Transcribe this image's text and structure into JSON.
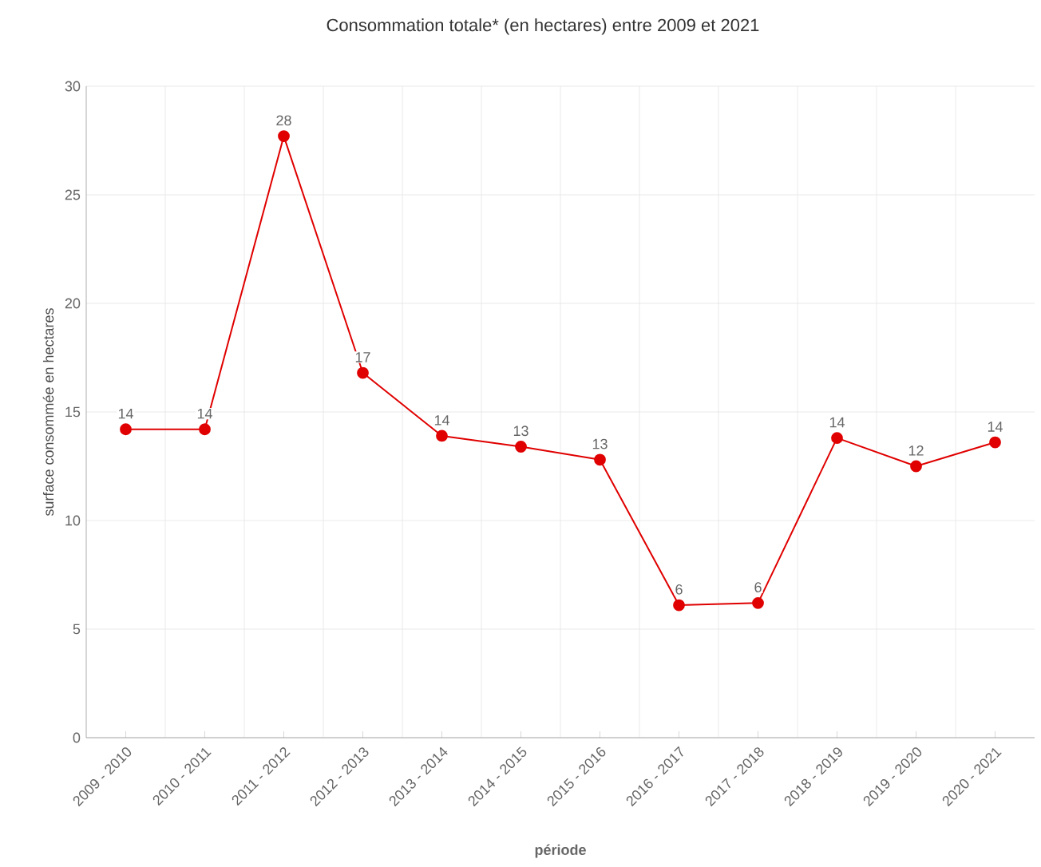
{
  "chart_data": {
    "type": "line",
    "title": "Consommation totale* (en hectares) entre 2009 et 2021",
    "xlabel": "période",
    "ylabel": "surface consommée en hectares",
    "categories": [
      "2009 - 2010",
      "2010 - 2011",
      "2011 - 2012",
      "2012 - 2013",
      "2013 - 2014",
      "2014 - 2015",
      "2015 - 2016",
      "2016 - 2017",
      "2017 - 2018",
      "2018 - 2019",
      "2019 - 2020",
      "2020 - 2021"
    ],
    "values": [
      14.2,
      14.2,
      27.7,
      16.8,
      13.9,
      13.4,
      12.8,
      6.1,
      6.2,
      13.8,
      12.5,
      13.6
    ],
    "value_labels": [
      "14",
      "14",
      "28",
      "17",
      "14",
      "13",
      "13",
      "6",
      "6",
      "14",
      "12",
      "14"
    ],
    "color": "#e00000",
    "marker": "circle",
    "line_style": "solid",
    "grid": true,
    "ylim": [
      0,
      30
    ],
    "yticks": [
      0,
      5,
      10,
      15,
      20,
      25,
      30
    ]
  }
}
